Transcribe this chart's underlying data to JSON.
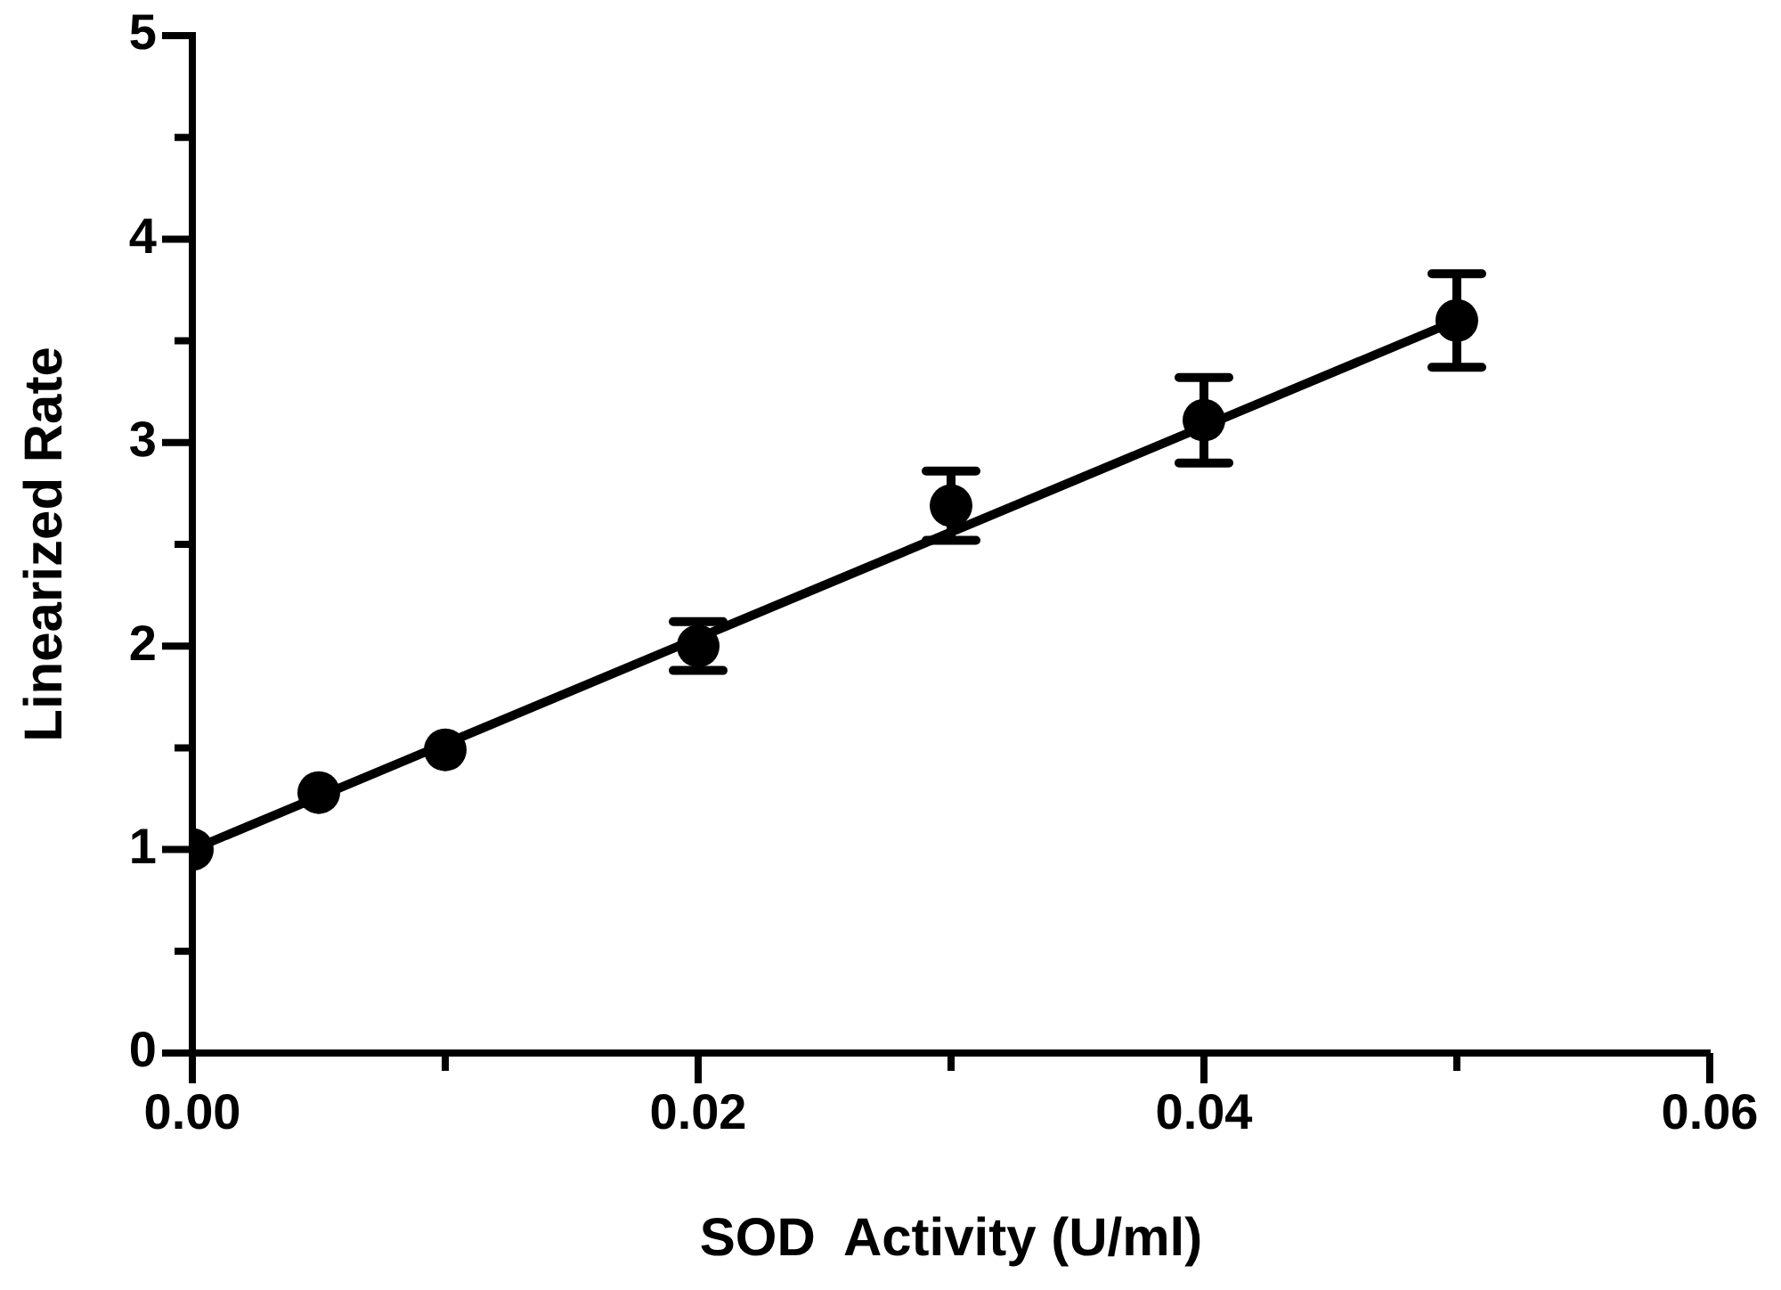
{
  "chart_data": {
    "type": "scatter",
    "xlabel": "SOD  Activity (U/ml)",
    "ylabel": "Linearized Rate",
    "xlim": [
      0,
      0.06
    ],
    "xticks": [
      {
        "value": 0,
        "label": "0.00"
      },
      {
        "value": 0.01,
        "label": null
      },
      {
        "value": 0.02,
        "label": "0.02"
      },
      {
        "value": 0.03,
        "label": null
      },
      {
        "value": 0.04,
        "label": "0.04"
      },
      {
        "value": 0.05,
        "label": null
      },
      {
        "value": 0.06,
        "label": "0.06"
      }
    ],
    "ylim": [
      0,
      5
    ],
    "yticks": [
      0,
      {
        "value": 0.5,
        "label": null
      },
      1,
      {
        "value": 1.5,
        "label": null
      },
      2,
      {
        "value": 2.5,
        "label": null
      },
      3,
      {
        "value": 3.5,
        "label": null
      },
      4,
      {
        "value": 4.5,
        "label": null
      },
      5
    ],
    "marker": "circle",
    "series": [
      {
        "color": "#000000",
        "x": [
          0,
          0.005,
          0.01,
          0.02,
          0.03,
          0.04,
          0.05
        ],
        "values": [
          1.0,
          1.28,
          1.49,
          2.0,
          2.69,
          3.11,
          3.6
        ],
        "errors": [
          null,
          null,
          null,
          0.12,
          0.17,
          0.21,
          0.23
        ]
      },
      {
        "type": "line",
        "color": "#000000",
        "x": [
          0,
          0.05
        ],
        "values": [
          1.0,
          3.6
        ],
        "marker": "none",
        "line_style": "solid"
      }
    ]
  }
}
